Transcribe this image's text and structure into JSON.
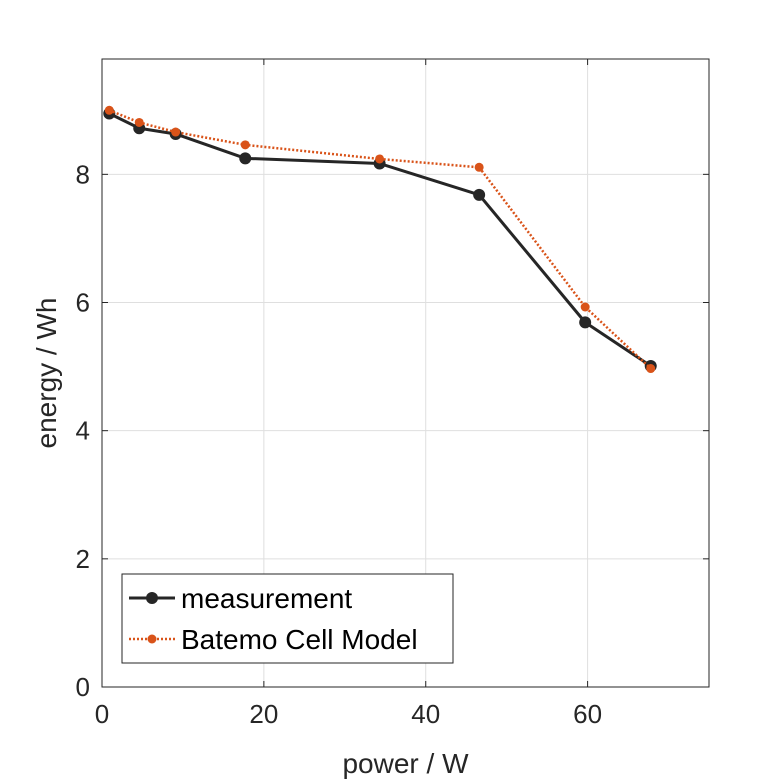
{
  "chart_data": {
    "type": "line",
    "xlabel": "power / W",
    "ylabel": "energy / Wh",
    "xlim": [
      0,
      75
    ],
    "ylim": [
      0,
      9.8
    ],
    "xticks": [
      0,
      20,
      40,
      60
    ],
    "yticks": [
      0,
      2,
      4,
      6,
      8
    ],
    "grid": true,
    "legend_position": "bottom-left",
    "series": [
      {
        "name": "measurement",
        "color": "#262626",
        "line_style": "solid",
        "marker": "circle",
        "x": [
          0.9,
          4.6,
          9.1,
          17.7,
          34.3,
          46.6,
          59.7,
          67.8
        ],
        "y": [
          8.95,
          8.72,
          8.63,
          8.25,
          8.17,
          7.68,
          5.69,
          5.01
        ]
      },
      {
        "name": "Batemo Cell Model",
        "color": "#d95319",
        "line_style": "dotted",
        "marker": "circle",
        "x": [
          0.9,
          4.6,
          9.1,
          17.7,
          34.3,
          46.6,
          59.7,
          67.8
        ],
        "y": [
          9.0,
          8.81,
          8.66,
          8.46,
          8.24,
          8.11,
          5.93,
          4.97
        ]
      }
    ]
  }
}
